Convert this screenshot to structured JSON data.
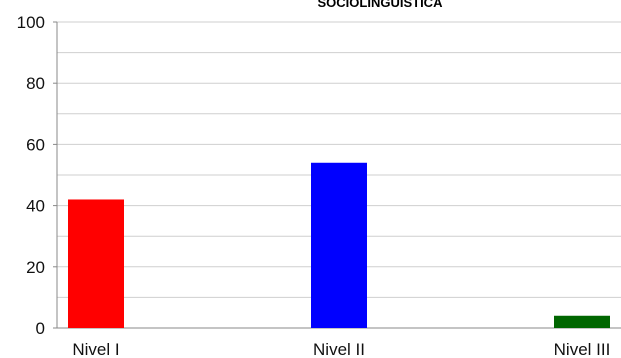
{
  "chart_data": {
    "type": "bar",
    "title": "SOCIOLINGUÍSTICA",
    "categories": [
      "Nivel I",
      "Nivel II",
      "Nivel III"
    ],
    "values": [
      42,
      54,
      4
    ],
    "colors": [
      "#ff0000",
      "#0000ff",
      "#006600"
    ],
    "yticks": [
      "0",
      "20",
      "40",
      "60",
      "80",
      "100"
    ],
    "ylim": [
      0,
      100
    ],
    "grid": true,
    "xlabel": "",
    "ylabel": ""
  }
}
